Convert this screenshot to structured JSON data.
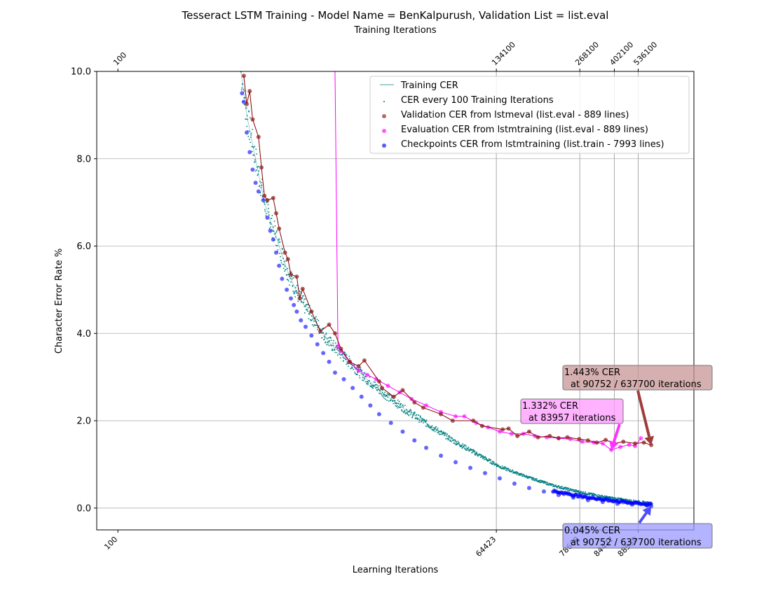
{
  "chart_data": {
    "type": "scatter",
    "title": "Tesseract LSTM Training - Model Name = BenKalpurush, Validation List = list.eval",
    "xlabel": "Learning Iterations",
    "x2label": "Training Iterations",
    "ylabel": "Character Error Rate %",
    "ylim": [
      -0.5,
      10.0
    ],
    "xlim": [
      -3500,
      98000
    ],
    "grid": true,
    "legend_position": "upper-right",
    "y_ticks": [
      {
        "value": 0.0,
        "label": "0.0"
      },
      {
        "value": 2.0,
        "label": "2.0"
      },
      {
        "value": 4.0,
        "label": "4.0"
      },
      {
        "value": 6.0,
        "label": "6.0"
      },
      {
        "value": 8.0,
        "label": "8.0"
      },
      {
        "value": 10.0,
        "label": "10.0"
      }
    ],
    "x_ticks_bottom": [
      {
        "value": 100,
        "label": "100"
      },
      {
        "value": 64423,
        "label": "64423"
      },
      {
        "value": 78608,
        "label": "78608"
      },
      {
        "value": 84477,
        "label": "84477"
      },
      {
        "value": 88530,
        "label": "88530"
      }
    ],
    "x_ticks_top": [
      {
        "value": 100,
        "label": "100"
      },
      {
        "value": 64423,
        "label": "134100"
      },
      {
        "value": 78608,
        "label": "268100"
      },
      {
        "value": 84477,
        "label": "402100"
      },
      {
        "value": 88530,
        "label": "536100"
      }
    ],
    "series": [
      {
        "name": "Training CER",
        "kind": "line",
        "color": "#008080",
        "x": [
          21000,
          22000,
          23500,
          25000,
          27000,
          29000,
          31000,
          33500,
          36000,
          39000,
          42000,
          45500,
          49000,
          53000,
          57000,
          61000,
          65000,
          69500,
          74000,
          78500,
          83000,
          87500,
          91000
        ],
        "y": [
          10.0,
          9.0,
          8.0,
          7.0,
          6.2,
          5.4,
          4.8,
          4.3,
          3.8,
          3.4,
          3.0,
          2.6,
          2.25,
          1.9,
          1.55,
          1.25,
          0.95,
          0.72,
          0.52,
          0.37,
          0.25,
          0.16,
          0.1
        ]
      },
      {
        "name": "CER every 100 Training Iterations",
        "kind": "scatter",
        "color": "#008080"
      },
      {
        "name": "Validation CER from lstmeval (list.eval - 889 lines)",
        "kind": "scatter-line",
        "color": "#8b1a1a",
        "x": [
          21500,
          22000,
          22500,
          23000,
          24000,
          24500,
          25000,
          25500,
          26500,
          27000,
          27500,
          28500,
          29000,
          29500,
          30500,
          31000,
          31500,
          33000,
          34500,
          36000,
          37000,
          38000,
          39500,
          41000,
          42000,
          44500,
          45000,
          47000,
          48500,
          50500,
          52000,
          55000,
          57000,
          60500,
          62000,
          65500,
          66500,
          68000,
          70000,
          71500,
          73500,
          75000,
          76500,
          78500,
          80000,
          81500,
          83000,
          84500,
          86000,
          88000,
          89500,
          90752
        ],
        "y": [
          9.9,
          9.25,
          9.55,
          8.9,
          8.5,
          7.8,
          7.15,
          7.05,
          7.1,
          6.75,
          6.4,
          5.85,
          5.7,
          5.35,
          5.3,
          4.8,
          5.02,
          4.5,
          4.05,
          4.2,
          4.0,
          3.65,
          3.35,
          3.25,
          3.38,
          2.9,
          2.75,
          2.55,
          2.7,
          2.42,
          2.3,
          2.15,
          2.0,
          2.0,
          1.88,
          1.8,
          1.82,
          1.65,
          1.75,
          1.62,
          1.65,
          1.6,
          1.62,
          1.58,
          1.55,
          1.5,
          1.56,
          1.48,
          1.52,
          1.48,
          1.5,
          1.443
        ]
      },
      {
        "name": "Evaluation CER from lstmtraining (list.eval - 889 lines)",
        "kind": "scatter-line",
        "color": "#ff00ff",
        "x": [
          37000,
          37500,
          38000,
          39500,
          41000,
          42500,
          44000,
          46000,
          48000,
          50000,
          52500,
          55000,
          57500,
          59000,
          61000,
          63000,
          65000,
          67000,
          69000,
          71000,
          73000,
          75000,
          77000,
          79000,
          81000,
          82500,
          83957,
          85500,
          87000,
          88000,
          89000
        ],
        "y": [
          10.0,
          3.7,
          3.6,
          3.35,
          3.15,
          3.05,
          2.95,
          2.8,
          2.65,
          2.5,
          2.35,
          2.2,
          2.1,
          2.1,
          1.95,
          1.85,
          1.75,
          1.7,
          1.7,
          1.65,
          1.62,
          1.6,
          1.58,
          1.52,
          1.5,
          1.48,
          1.332,
          1.4,
          1.45,
          1.42,
          1.6
        ]
      },
      {
        "name": "Checkpoints CER  from lstmtraining (list.train - 7993 lines)",
        "kind": "scatter",
        "color": "#0000ff",
        "x": [
          21200,
          21500,
          22000,
          22500,
          23000,
          23500,
          24000,
          24800,
          25500,
          26000,
          26500,
          27000,
          27500,
          28000,
          28800,
          29500,
          30000,
          30500,
          31200,
          32000,
          33000,
          34000,
          35000,
          36000,
          37000,
          38500,
          40000,
          41500,
          43000,
          44500,
          46500,
          48500,
          50500,
          52500,
          55000,
          57500,
          60000,
          62500,
          65000,
          67500,
          70000,
          72500,
          75000,
          77500,
          80000,
          82500,
          85000,
          87500,
          90000,
          90752
        ],
        "y": [
          9.5,
          9.3,
          8.6,
          8.15,
          7.75,
          7.45,
          7.25,
          7.05,
          6.65,
          6.35,
          6.15,
          5.85,
          5.55,
          5.25,
          5.0,
          4.8,
          4.65,
          4.5,
          4.3,
          4.15,
          3.95,
          3.75,
          3.55,
          3.35,
          3.1,
          2.95,
          2.75,
          2.55,
          2.35,
          2.15,
          1.95,
          1.75,
          1.55,
          1.38,
          1.2,
          1.05,
          0.92,
          0.8,
          0.68,
          0.56,
          0.46,
          0.38,
          0.3,
          0.24,
          0.18,
          0.14,
          0.1,
          0.08,
          0.06,
          0.045
        ]
      }
    ],
    "vertical_lines": [
      {
        "x": 64423,
        "color": "#aaaaaa"
      },
      {
        "x": 78608,
        "color": "#aaaaaa"
      },
      {
        "x": 84477,
        "color": "#aaaaaa"
      },
      {
        "x": 88530,
        "color": "#aaaaaa"
      }
    ],
    "annotations": [
      {
        "line1": "1.443%  CER",
        "line2": "at 90752 / 637700 iterations",
        "point_x": 90752,
        "point_y": 1.443,
        "box_color": "#c89696",
        "arrow_color": "#a03c3c"
      },
      {
        "line1": "1.332% CER",
        "line2": "at 83957 iterations",
        "point_x": 83957,
        "point_y": 1.332,
        "box_color": "#ff99ff",
        "arrow_color": "#ff33ff"
      },
      {
        "line1": "0.045%  CER",
        "line2": "at 90752 / 637700 iterations",
        "point_x": 90752,
        "point_y": 0.045,
        "box_color": "#9999ff",
        "arrow_color": "#4d4dff"
      }
    ]
  }
}
